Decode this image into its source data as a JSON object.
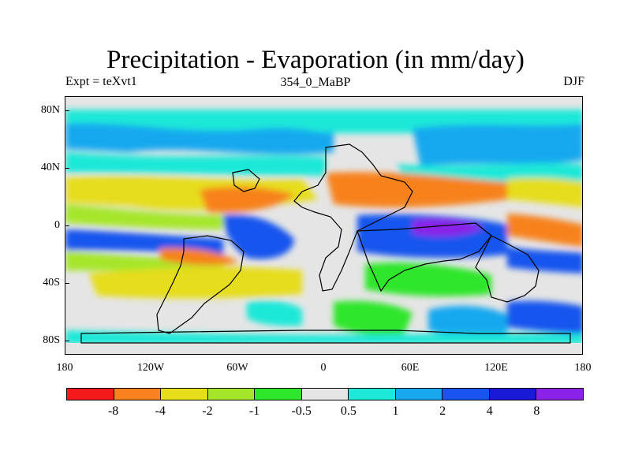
{
  "title": "Precipitation - Evaporation (in mm/day)",
  "subtitle_left": "Expt = teXvt1",
  "subtitle_center": "354_0_MaBP",
  "subtitle_right": "DJF",
  "y_tick_labels": [
    "80N",
    "40N",
    "0",
    "40S",
    "80S"
  ],
  "x_tick_labels": [
    "180",
    "120W",
    "60W",
    "0",
    "60E",
    "120E",
    "180"
  ],
  "colorbar": {
    "colors": [
      "#f41a1a",
      "#f7821f",
      "#e6dd1b",
      "#a6e62a",
      "#2ee62a",
      "#e5e5e5",
      "#1ee8d8",
      "#18a8ee",
      "#1854ee",
      "#1a1ad6",
      "#8a22e8"
    ],
    "labels": [
      "-8",
      "-4",
      "-2",
      "-1",
      "-0.5",
      "0.5",
      "1",
      "2",
      "4",
      "8"
    ]
  }
}
